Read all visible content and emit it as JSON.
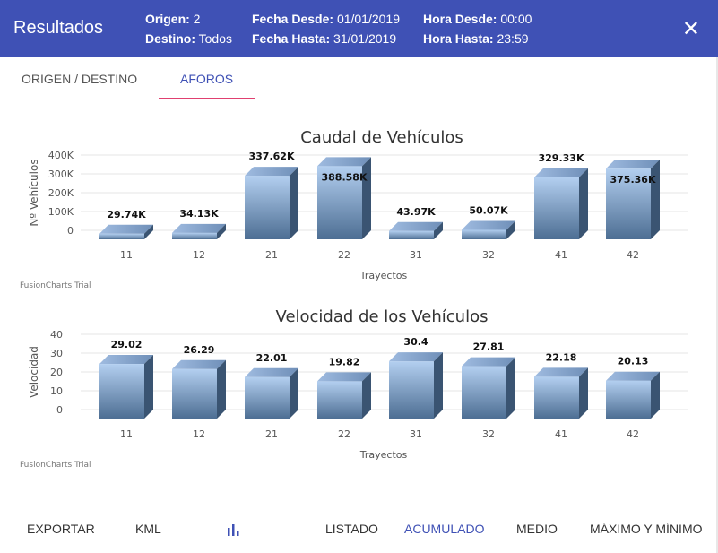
{
  "header": {
    "title": "Resultados",
    "origen_label": "Origen:",
    "origen": "2",
    "destino_label": "Destino:",
    "destino": "Todos",
    "fecha_desde_label": "Fecha Desde:",
    "fecha_desde": "01/01/2019",
    "fecha_hasta_label": "Fecha Hasta:",
    "fecha_hasta": "31/01/2019",
    "hora_desde_label": "Hora Desde:",
    "hora_desde": "00:00",
    "hora_hasta_label": "Hora Hasta:",
    "hora_hasta": "23:59",
    "close": "✕"
  },
  "tabs": [
    {
      "label": "ORIGEN / DESTINO"
    },
    {
      "label": "AFOROS"
    }
  ],
  "chart_data": [
    {
      "type": "bar",
      "title": "Caudal de Vehículos",
      "xlabel": "Trayectos",
      "ylabel": "Nº Vehículos",
      "categories": [
        "11",
        "12",
        "21",
        "22",
        "31",
        "32",
        "41",
        "42"
      ],
      "values": [
        29740,
        34130,
        337620,
        388580,
        43970,
        50070,
        329330,
        375360
      ],
      "labels": [
        "29.74K",
        "34.13K",
        "337.62K",
        "388.58K",
        "43.97K",
        "50.07K",
        "329.33K",
        "375.36K"
      ],
      "yticks": [
        "0",
        "100K",
        "200K",
        "300K",
        "400K"
      ],
      "ylim": [
        0,
        400000
      ],
      "grid": true,
      "watermark": "FusionCharts Trial"
    },
    {
      "type": "bar",
      "title": "Velocidad de los Vehículos",
      "xlabel": "Trayectos",
      "ylabel": "Velocidad",
      "categories": [
        "11",
        "12",
        "21",
        "22",
        "31",
        "32",
        "41",
        "42"
      ],
      "values": [
        29.02,
        26.29,
        22.01,
        19.82,
        30.4,
        27.81,
        22.18,
        20.13
      ],
      "labels": [
        "29.02",
        "26.29",
        "22.01",
        "19.82",
        "30.4",
        "27.81",
        "22.18",
        "20.13"
      ],
      "yticks": [
        "0",
        "10",
        "20",
        "30",
        "40"
      ],
      "ylim": [
        0,
        40
      ],
      "grid": true,
      "watermark": "FusionCharts Trial"
    }
  ],
  "footer": {
    "exportar": "EXPORTAR",
    "kml": "KML",
    "chart_icon": "bar-chart-icon",
    "listado": "LISTADO",
    "acumulado": "ACUMULADO",
    "medio": "MEDIO",
    "maxmin": "MÁXIMO Y MÍNIMO"
  },
  "colors": {
    "primary": "#3f51b5",
    "tab_ink": "#e04070"
  }
}
